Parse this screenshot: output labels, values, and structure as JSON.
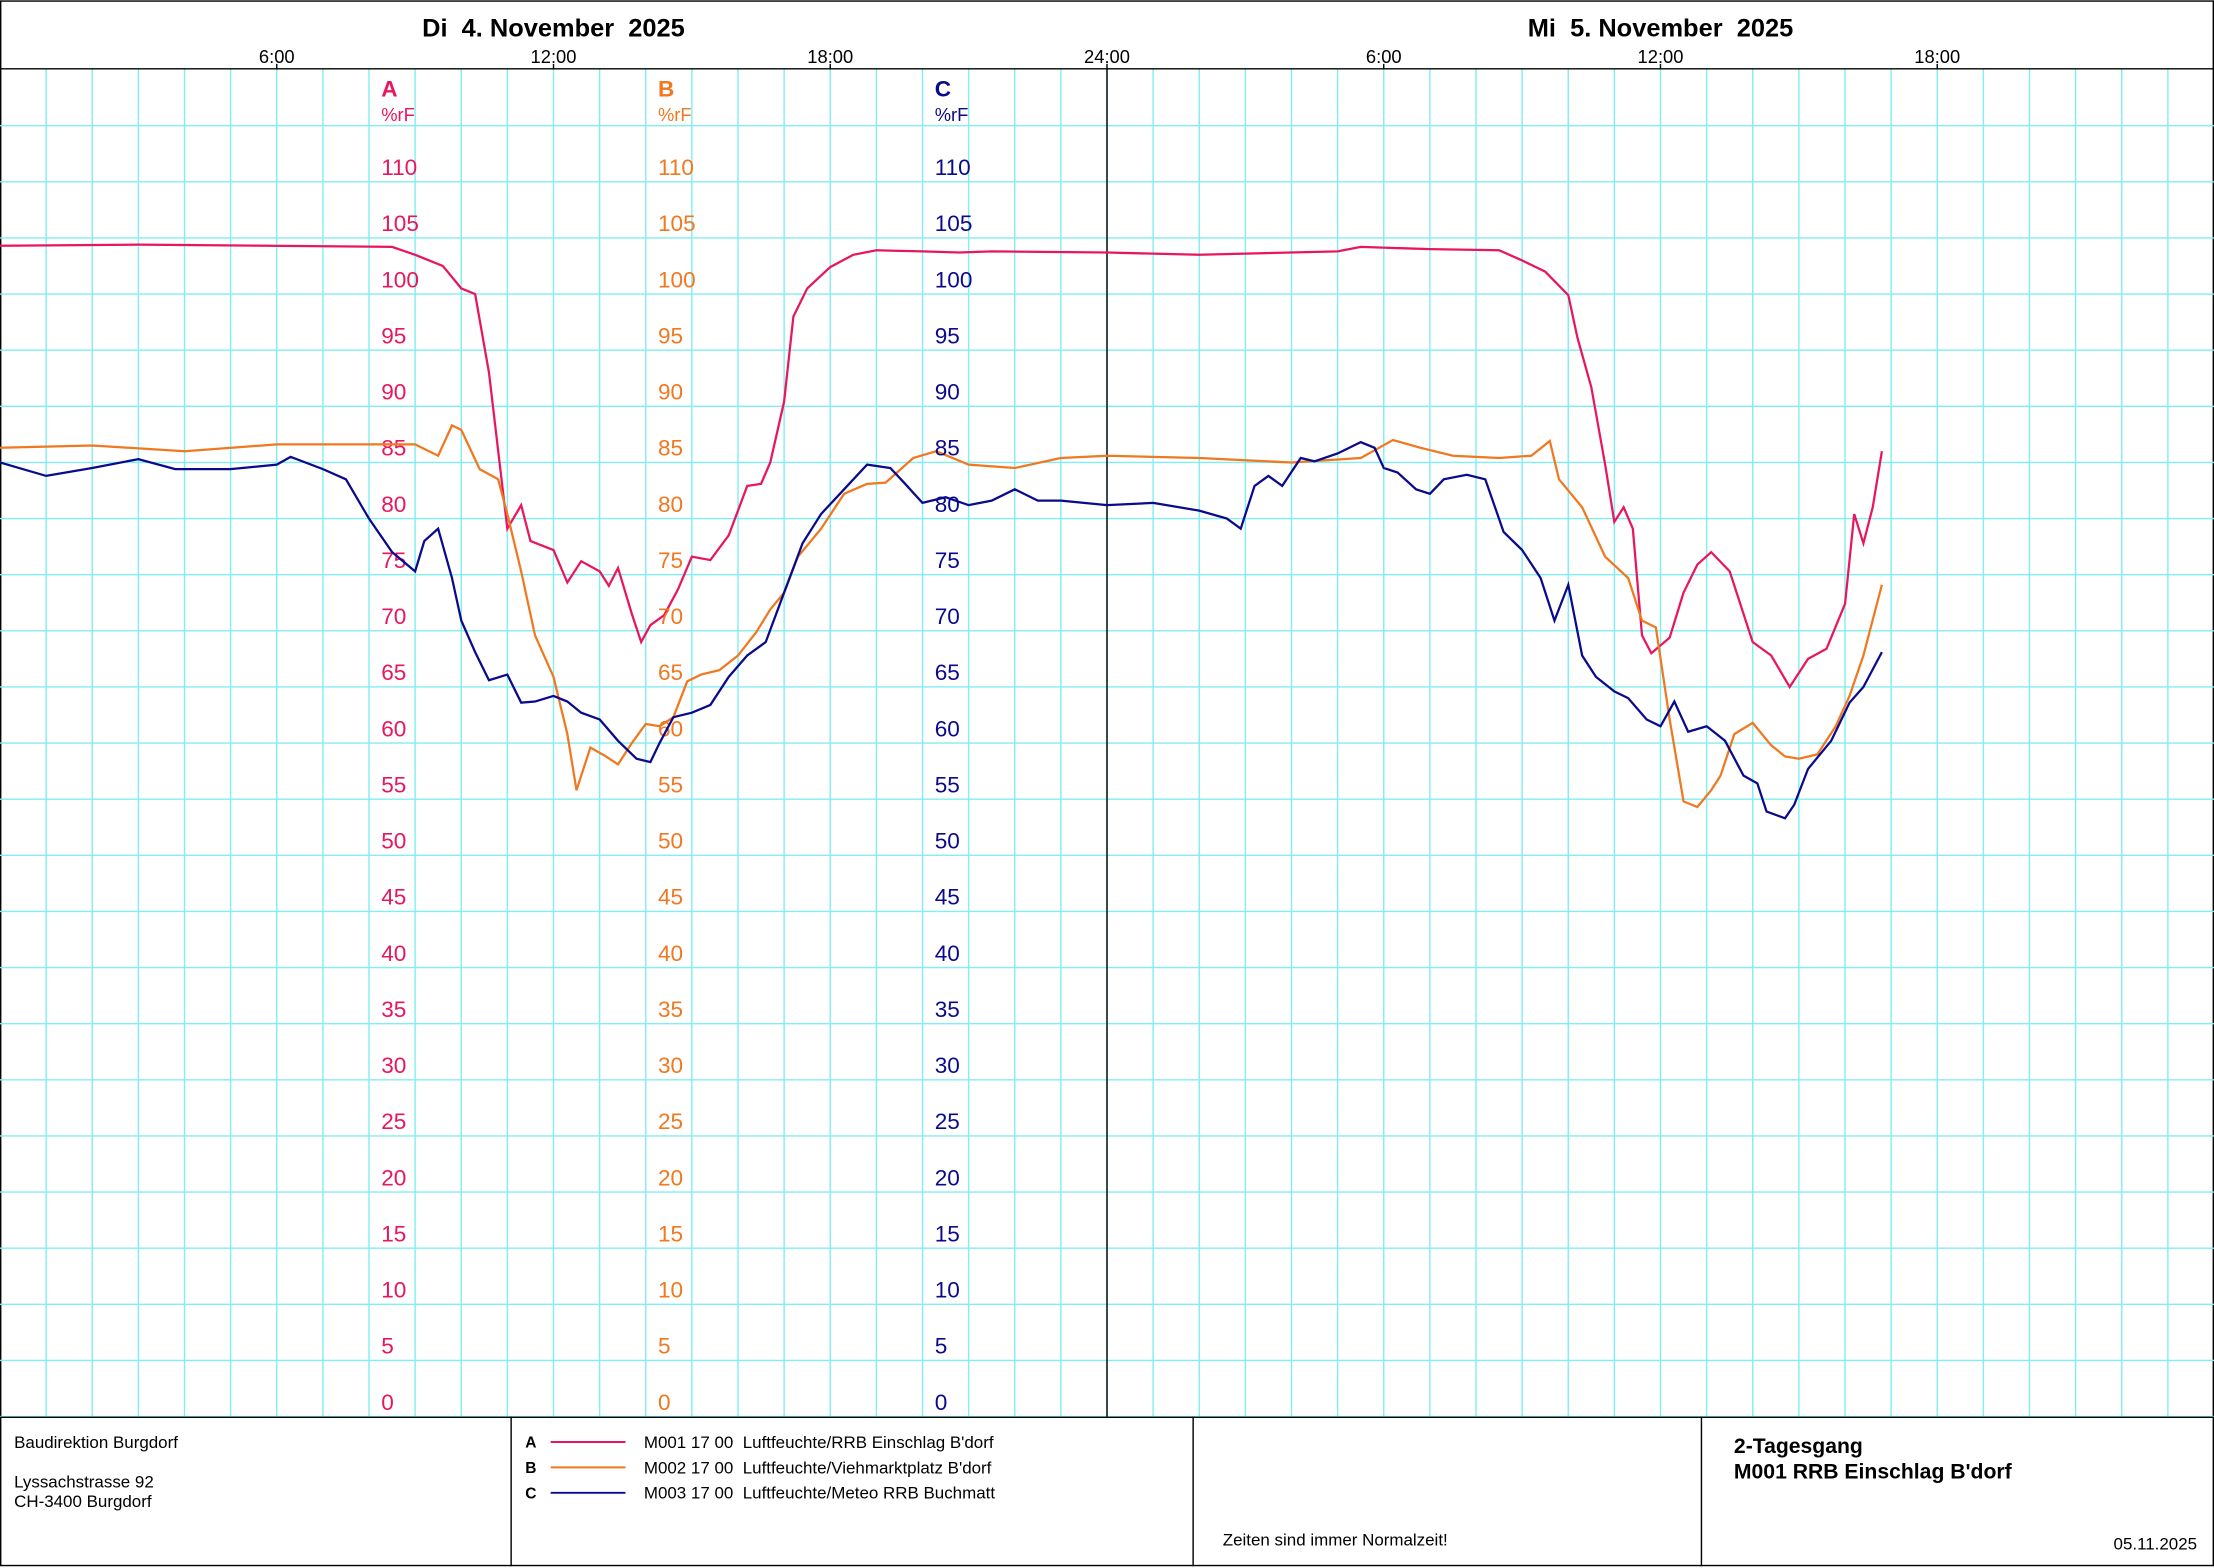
{
  "chart_data": {
    "type": "line",
    "days": [
      {
        "label": "Di  4. November  2025",
        "start": 0
      },
      {
        "label": "Mi  5. November  2025",
        "start": 24
      }
    ],
    "xlim": [
      0,
      48
    ],
    "xticks": [
      {
        "value": 6,
        "label": "6:00"
      },
      {
        "value": 12,
        "label": "12:00"
      },
      {
        "value": 18,
        "label": "18:00"
      },
      {
        "value": 24,
        "label": "24:00"
      },
      {
        "value": 30,
        "label": "6:00"
      },
      {
        "value": 36,
        "label": "12:00"
      },
      {
        "value": 42,
        "label": "18:00"
      }
    ],
    "ylim": [
      0,
      120
    ],
    "yticks": [
      0,
      5,
      10,
      15,
      20,
      25,
      30,
      35,
      40,
      45,
      50,
      55,
      60,
      65,
      70,
      75,
      80,
      85,
      90,
      95,
      100,
      105,
      110
    ],
    "grid": true,
    "series": [
      {
        "id": "A",
        "unit": "%rF",
        "name": "M001 17 00  Luftfeuchte/RRB Einschlag B'dorf",
        "color": "#e8175d",
        "x": [
          0,
          3,
          8.5,
          9,
          9.6,
          10,
          10.3,
          10.6,
          11,
          11.3,
          11.5,
          12,
          12.3,
          12.6,
          13,
          13.2,
          13.4,
          13.7,
          13.9,
          14.1,
          14.4,
          14.7,
          15,
          15.4,
          15.8,
          16.2,
          16.5,
          16.7,
          17,
          17.2,
          17.5,
          18,
          18.5,
          19,
          20,
          20.8,
          21.5,
          24,
          26,
          29,
          29.5,
          31,
          32.5,
          33,
          33.5,
          34,
          34.2,
          34.5,
          34.8,
          35,
          35.2,
          35.4,
          35.6,
          35.8,
          36.2,
          36.5,
          36.8,
          37.1,
          37.5,
          38,
          38.4,
          38.8,
          39.2,
          39.6,
          40,
          40.2,
          40.4,
          40.6,
          40.8
        ],
        "values": [
          104.3,
          104.4,
          104.2,
          103.5,
          102.5,
          100.5,
          100,
          93,
          79.1,
          81.2,
          78,
          77.2,
          74.3,
          76.2,
          75.3,
          74,
          75.6,
          71.5,
          69,
          70.5,
          71.4,
          73.7,
          76.6,
          76.3,
          78.5,
          82.9,
          83.1,
          85,
          90.4,
          98,
          100.5,
          102.4,
          103.5,
          103.9,
          103.8,
          103.7,
          103.8,
          103.7,
          103.5,
          103.8,
          104.2,
          104,
          103.9,
          103,
          102,
          99.9,
          96.1,
          91.7,
          84.8,
          79.7,
          81,
          79.1,
          69.6,
          68,
          69.4,
          73.4,
          75.9,
          77,
          75.3,
          69,
          67.8,
          65,
          67.5,
          68.4,
          72.4,
          80.4,
          77.8,
          81,
          86
        ]
      },
      {
        "id": "B",
        "unit": "%rF",
        "name": "M002 17 00  Luftfeuchte/Viehmarktplatz B'dorf",
        "color": "#f07820",
        "x": [
          0,
          2,
          4,
          6,
          9,
          9.5,
          9.8,
          10,
          10.4,
          10.8,
          11,
          11.3,
          11.6,
          12,
          12.3,
          12.5,
          12.8,
          13.1,
          13.4,
          13.7,
          14,
          14.3,
          14.6,
          14.9,
          15.2,
          15.6,
          16,
          16.4,
          16.7,
          17,
          17.3,
          17.8,
          18.3,
          18.8,
          19.2,
          19.8,
          20.3,
          21,
          22,
          23,
          24,
          26,
          28,
          29.5,
          30.2,
          30.8,
          31.5,
          32.5,
          33.2,
          33.6,
          33.8,
          34.3,
          34.8,
          35.3,
          35.6,
          35.9,
          36.2,
          36.5,
          36.8,
          37.1,
          37.3,
          37.6,
          38,
          38.4,
          38.7,
          39,
          39.4,
          39.8,
          40.1,
          40.4,
          40.8
        ],
        "values": [
          86.3,
          86.5,
          86,
          86.6,
          86.6,
          85.6,
          88.3,
          87.9,
          84.4,
          83.5,
          80.4,
          75.3,
          69.6,
          65.9,
          60.8,
          55.8,
          59.6,
          58.9,
          58.1,
          60,
          61.7,
          61.5,
          62.3,
          65.5,
          66.1,
          66.5,
          67.8,
          69.9,
          71.9,
          73.4,
          76.6,
          79.1,
          82.2,
          83.1,
          83.2,
          85.4,
          86,
          84.8,
          84.5,
          85.4,
          85.6,
          85.4,
          85,
          85.4,
          87,
          86.3,
          85.6,
          85.4,
          85.6,
          86.9,
          83.5,
          81,
          76.6,
          74.7,
          70.9,
          70.3,
          62.1,
          54.8,
          54.3,
          55.8,
          57.1,
          60.8,
          61.8,
          59.8,
          58.8,
          58.6,
          59,
          61.5,
          64.2,
          67.8,
          74.1
        ]
      },
      {
        "id": "C",
        "unit": "%rF",
        "name": "M003 17 00  Luftfeuchte/Meteo RRB Buchmatt",
        "color": "#0a0a8c",
        "x": [
          0,
          1,
          2,
          3,
          3.8,
          5,
          6,
          6.3,
          7,
          7.5,
          8,
          8.5,
          9,
          9.2,
          9.5,
          9.8,
          10,
          10.3,
          10.6,
          11,
          11.3,
          11.6,
          12,
          12.3,
          12.6,
          13,
          13.4,
          13.8,
          14.1,
          14.3,
          14.6,
          15,
          15.4,
          15.8,
          16.2,
          16.6,
          17,
          17.4,
          17.8,
          18.3,
          18.8,
          19.3,
          19.6,
          20,
          20.5,
          21,
          21.5,
          22,
          22.5,
          23,
          24,
          25,
          26,
          26.6,
          26.9,
          27.2,
          27.5,
          27.8,
          28.2,
          28.5,
          29,
          29.5,
          29.8,
          30,
          30.3,
          30.7,
          31,
          31.3,
          31.8,
          32.2,
          32.6,
          33,
          33.4,
          33.7,
          34,
          34.3,
          34.6,
          35,
          35.3,
          35.7,
          36,
          36.3,
          36.6,
          37,
          37.4,
          37.8,
          38.1,
          38.3,
          38.7,
          38.9,
          39.2,
          39.7,
          40.1,
          40.4,
          40.8
        ],
        "values": [
          85,
          83.8,
          84.5,
          85.3,
          84.4,
          84.4,
          84.8,
          85.5,
          84.4,
          83.5,
          80,
          77,
          75.3,
          78,
          79.1,
          74.7,
          70.9,
          68.1,
          65.6,
          66.1,
          63.6,
          63.7,
          64.2,
          63.7,
          62.7,
          62.1,
          60.2,
          58.6,
          58.3,
          60,
          62.3,
          62.7,
          63.4,
          65.9,
          67.8,
          69,
          73.4,
          77.8,
          80.4,
          82.6,
          84.8,
          84.5,
          83.2,
          81.4,
          81.9,
          81.2,
          81.6,
          82.6,
          81.6,
          81.6,
          81.2,
          81.4,
          80.7,
          80,
          79.1,
          82.9,
          83.8,
          82.9,
          85.4,
          85.1,
          85.8,
          86.8,
          86.3,
          84.5,
          84.1,
          82.6,
          82.2,
          83.5,
          83.9,
          83.5,
          78.8,
          77.2,
          74.7,
          70.9,
          74.1,
          67.8,
          65.9,
          64.6,
          64,
          62.1,
          61.5,
          63.7,
          61,
          61.5,
          60.2,
          57.1,
          56.4,
          53.9,
          53.3,
          54.5,
          57.7,
          60.2,
          63.6,
          65,
          68.1
        ]
      }
    ]
  },
  "footer": {
    "org": "Baudirektion Burgdorf",
    "street": "Lyssachstrasse 92",
    "city": "CH-3400 Burgdorf",
    "note": "Zeiten sind immer Normalzeit!",
    "title": "2-Tagesgang",
    "subtitle": "M001 RRB Einschlag B'dorf",
    "date": "05.11.2025"
  }
}
